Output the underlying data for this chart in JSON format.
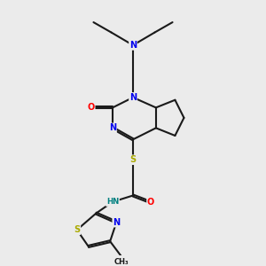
{
  "background_color": "#ebebeb",
  "bond_color": "#1a1a1a",
  "atom_colors": {
    "N": "#0000ee",
    "O": "#ff0000",
    "S": "#aaaa00",
    "C": "#1a1a1a",
    "H": "#008080"
  }
}
